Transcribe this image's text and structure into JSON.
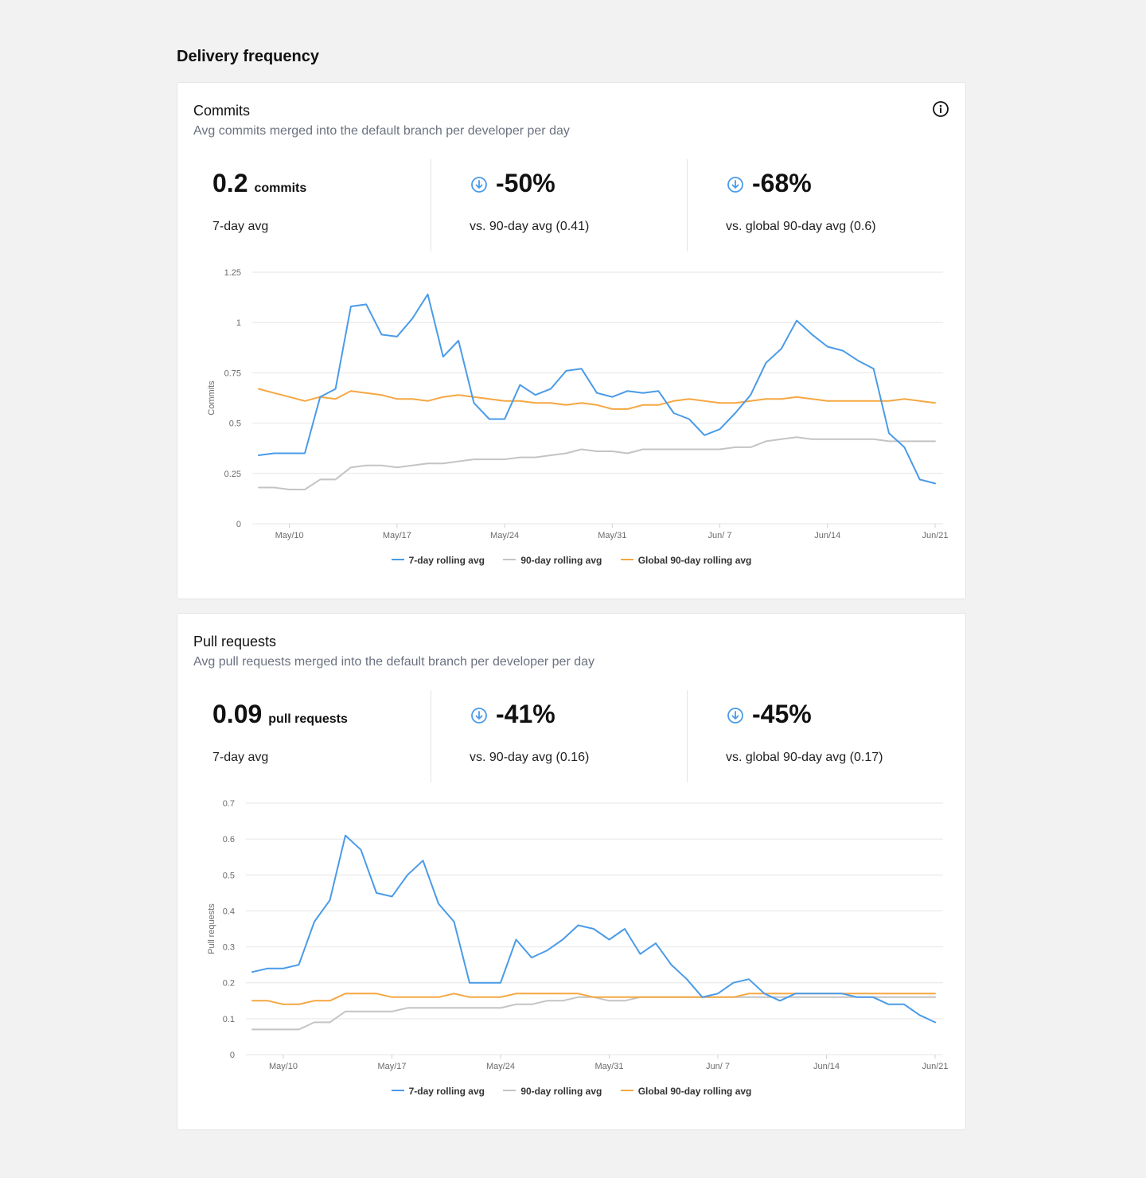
{
  "page": {
    "title": "Delivery frequency"
  },
  "colors": {
    "series_7day": "#4a9be8",
    "series_90day": "#c4c4c4",
    "series_global": "#f5a742",
    "grid": "#e6e6e6",
    "axis_text": "#6b6b6b",
    "down_arrow": "#4a9be8"
  },
  "cards": [
    {
      "title": "Commits",
      "subtitle": "Avg commits merged into the default branch per developer per day",
      "info_icon": "info-circle-icon",
      "stat_value": "0.2",
      "stat_unit": "commits",
      "stat_label": "7-day avg",
      "change_90": "-50%",
      "change_90_label": "vs. 90-day avg (0.41)",
      "change_global": "-68%",
      "change_global_label": "vs. global 90-day avg (0.6)",
      "legend": [
        "7-day rolling avg",
        "90-day rolling avg",
        "Global 90-day rolling avg"
      ]
    },
    {
      "title": "Pull requests",
      "subtitle": "Avg pull requests merged into the default branch per developer per day",
      "stat_value": "0.09",
      "stat_unit": "pull requests",
      "stat_label": "7-day avg",
      "change_90": "-41%",
      "change_90_label": "vs. 90-day avg (0.16)",
      "change_global": "-45%",
      "change_global_label": "vs. global 90-day avg (0.17)",
      "legend": [
        "7-day rolling avg",
        "90-day rolling avg",
        "Global 90-day rolling avg"
      ]
    }
  ],
  "chart_data": [
    {
      "type": "line",
      "ylabel": "Commits",
      "ylim": [
        0,
        1.25
      ],
      "yticks": [
        "0",
        "0.25",
        "0.5",
        "0.75",
        "1",
        "1.25"
      ],
      "ytick_values": [
        0,
        0.25,
        0.5,
        0.75,
        1,
        1.25
      ],
      "x_start": "May 8",
      "xtick_labels": [
        "May/10",
        "May/17",
        "May/24",
        "May/31",
        "Jun/ 7",
        "Jun/14",
        "Jun/21"
      ],
      "xtick_days": [
        2,
        9,
        16,
        23,
        30,
        37,
        44
      ],
      "grid": true,
      "legend_position": "bottom",
      "series": [
        {
          "name": "7-day rolling avg",
          "values": [
            0.34,
            0.35,
            0.35,
            0.35,
            0.63,
            0.67,
            1.08,
            1.09,
            0.94,
            0.93,
            1.02,
            1.14,
            0.83,
            0.91,
            0.6,
            0.52,
            0.52,
            0.69,
            0.64,
            0.67,
            0.76,
            0.77,
            0.65,
            0.63,
            0.66,
            0.65,
            0.66,
            0.55,
            0.52,
            0.44,
            0.47,
            0.55,
            0.64,
            0.8,
            0.87,
            1.01,
            0.94,
            0.88,
            0.86,
            0.81,
            0.77,
            0.45,
            0.38,
            0.22,
            0.2
          ]
        },
        {
          "name": "90-day rolling avg",
          "values": [
            0.18,
            0.18,
            0.17,
            0.17,
            0.22,
            0.22,
            0.28,
            0.29,
            0.29,
            0.28,
            0.29,
            0.3,
            0.3,
            0.31,
            0.32,
            0.32,
            0.32,
            0.33,
            0.33,
            0.34,
            0.35,
            0.37,
            0.36,
            0.36,
            0.35,
            0.37,
            0.37,
            0.37,
            0.37,
            0.37,
            0.37,
            0.38,
            0.38,
            0.41,
            0.42,
            0.43,
            0.42,
            0.42,
            0.42,
            0.42,
            0.42,
            0.41,
            0.41,
            0.41,
            0.41
          ]
        },
        {
          "name": "Global 90-day rolling avg",
          "values": [
            0.67,
            0.65,
            0.63,
            0.61,
            0.63,
            0.62,
            0.66,
            0.65,
            0.64,
            0.62,
            0.62,
            0.61,
            0.63,
            0.64,
            0.63,
            0.62,
            0.61,
            0.61,
            0.6,
            0.6,
            0.59,
            0.6,
            0.59,
            0.57,
            0.57,
            0.59,
            0.59,
            0.61,
            0.62,
            0.61,
            0.6,
            0.6,
            0.61,
            0.62,
            0.62,
            0.63,
            0.62,
            0.61,
            0.61,
            0.61,
            0.61,
            0.61,
            0.62,
            0.61,
            0.6
          ]
        }
      ]
    },
    {
      "type": "line",
      "ylabel": "Pull requests",
      "ylim": [
        0,
        0.7
      ],
      "yticks": [
        "0",
        "0.1",
        "0.2",
        "0.3",
        "0.4",
        "0.5",
        "0.6",
        "0.7"
      ],
      "ytick_values": [
        0,
        0.1,
        0.2,
        0.3,
        0.4,
        0.5,
        0.6,
        0.7
      ],
      "x_start": "May 8",
      "xtick_labels": [
        "May/10",
        "May/17",
        "May/24",
        "May/31",
        "Jun/ 7",
        "Jun/14",
        "Jun/21"
      ],
      "xtick_days": [
        2,
        9,
        16,
        23,
        30,
        37,
        44
      ],
      "grid": true,
      "legend_position": "bottom",
      "series": [
        {
          "name": "7-day rolling avg",
          "values": [
            0.23,
            0.24,
            0.24,
            0.25,
            0.37,
            0.43,
            0.61,
            0.57,
            0.45,
            0.44,
            0.5,
            0.54,
            0.42,
            0.37,
            0.2,
            0.2,
            0.2,
            0.32,
            0.27,
            0.29,
            0.32,
            0.36,
            0.35,
            0.32,
            0.35,
            0.28,
            0.31,
            0.25,
            0.21,
            0.16,
            0.17,
            0.2,
            0.21,
            0.17,
            0.15,
            0.17,
            0.17,
            0.17,
            0.17,
            0.16,
            0.16,
            0.14,
            0.14,
            0.11,
            0.09
          ]
        },
        {
          "name": "90-day rolling avg",
          "values": [
            0.07,
            0.07,
            0.07,
            0.07,
            0.09,
            0.09,
            0.12,
            0.12,
            0.12,
            0.12,
            0.13,
            0.13,
            0.13,
            0.13,
            0.13,
            0.13,
            0.13,
            0.14,
            0.14,
            0.15,
            0.15,
            0.16,
            0.16,
            0.15,
            0.15,
            0.16,
            0.16,
            0.16,
            0.16,
            0.16,
            0.16,
            0.16,
            0.16,
            0.16,
            0.16,
            0.16,
            0.16,
            0.16,
            0.16,
            0.16,
            0.16,
            0.16,
            0.16,
            0.16,
            0.16
          ]
        },
        {
          "name": "Global 90-day rolling avg",
          "values": [
            0.15,
            0.15,
            0.14,
            0.14,
            0.15,
            0.15,
            0.17,
            0.17,
            0.17,
            0.16,
            0.16,
            0.16,
            0.16,
            0.17,
            0.16,
            0.16,
            0.16,
            0.17,
            0.17,
            0.17,
            0.17,
            0.17,
            0.16,
            0.16,
            0.16,
            0.16,
            0.16,
            0.16,
            0.16,
            0.16,
            0.16,
            0.16,
            0.17,
            0.17,
            0.17,
            0.17,
            0.17,
            0.17,
            0.17,
            0.17,
            0.17,
            0.17,
            0.17,
            0.17,
            0.17
          ]
        }
      ]
    }
  ]
}
